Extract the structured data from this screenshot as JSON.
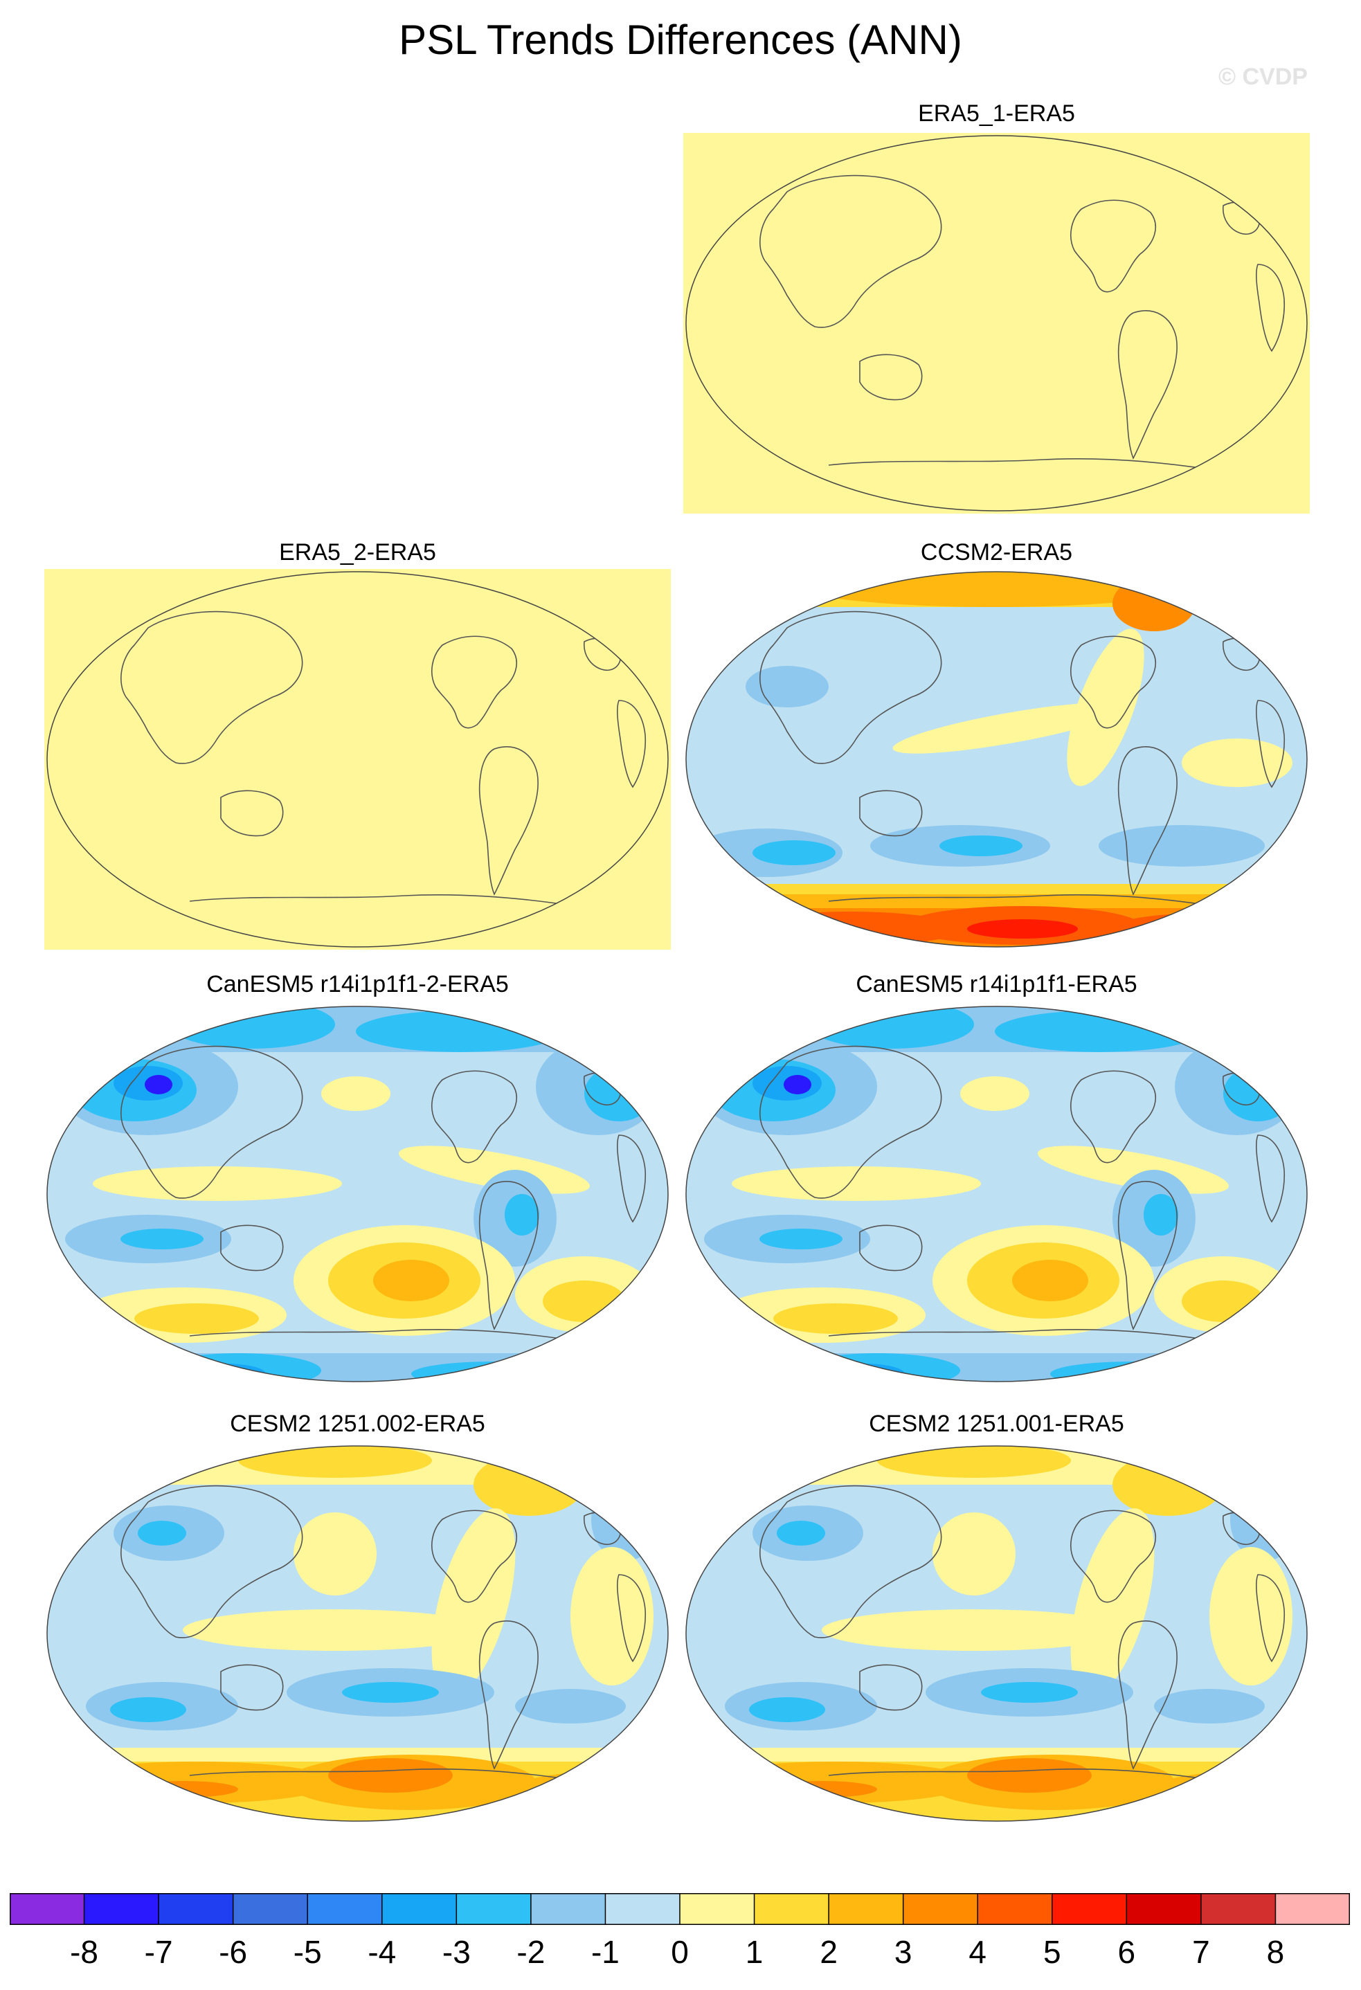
{
  "title": "PSL Trends Differences (ANN)",
  "watermark": "© CVDP",
  "panels": [
    {
      "label": "ERA5_1-ERA5",
      "pattern": "flat"
    },
    {
      "label": "ERA5_2-ERA5",
      "pattern": "flat"
    },
    {
      "label": "CCSM2-ERA5",
      "pattern": "ccsm2"
    },
    {
      "label": "CanESM5 r14i1p1f1-2-ERA5",
      "pattern": "canesm"
    },
    {
      "label": "CanESM5 r14i1p1f1-ERA5",
      "pattern": "canesm"
    },
    {
      "label": "CESM2 1251.002-ERA5",
      "pattern": "cesm"
    },
    {
      "label": "CESM2 1251.001-ERA5",
      "pattern": "cesm"
    }
  ],
  "colorbar": {
    "ticks": [
      "-8",
      "-7",
      "-6",
      "-5",
      "-4",
      "-3",
      "-2",
      "-1",
      "0",
      "1",
      "2",
      "3",
      "4",
      "5",
      "6",
      "7",
      "8"
    ],
    "colors": [
      "#8a2be2",
      "#2a18ff",
      "#1f3ff0",
      "#3a6fe0",
      "#2f86f5",
      "#16a6f5",
      "#2fc0f5",
      "#8ec8ee",
      "#bde0f2",
      "#fff79a",
      "#ffdc35",
      "#ffb810",
      "#ff8c00",
      "#ff5a00",
      "#ff1a00",
      "#d90000",
      "#d32f2f",
      "#ffb0b0"
    ]
  },
  "palette": {
    "neutral": "#fff79a",
    "landline": "#555555"
  }
}
